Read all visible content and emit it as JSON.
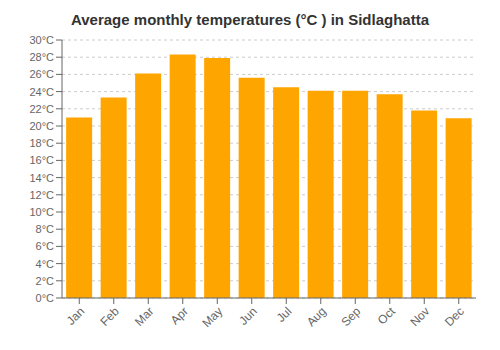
{
  "chart_data": {
    "type": "bar",
    "title": "Average monthly temperatures (°C ) in Sidlaghatta",
    "categories": [
      "Jan",
      "Feb",
      "Mar",
      "Apr",
      "May",
      "Jun",
      "Jul",
      "Aug",
      "Sep",
      "Oct",
      "Nov",
      "Dec"
    ],
    "values": [
      21.0,
      23.3,
      26.1,
      28.3,
      27.9,
      25.6,
      24.5,
      24.1,
      24.1,
      23.7,
      21.8,
      20.9
    ],
    "color": "#FFA500",
    "ylim": [
      0,
      30
    ],
    "yticks": [
      {
        "value": 0,
        "label": "0°C"
      },
      {
        "value": 2,
        "label": "2°C"
      },
      {
        "value": 4,
        "label": "4°C"
      },
      {
        "value": 6,
        "label": "6°C"
      },
      {
        "value": 8,
        "label": "8°C"
      },
      {
        "value": 10,
        "label": "10°C"
      },
      {
        "value": 12,
        "label": "12°C"
      },
      {
        "value": 14,
        "label": "14°C"
      },
      {
        "value": 16,
        "label": "16°C"
      },
      {
        "value": 18,
        "label": "18°C"
      },
      {
        "value": 20,
        "label": "20°C"
      },
      {
        "value": 22,
        "label": "22°C"
      },
      {
        "value": 24,
        "label": "24°C"
      },
      {
        "value": 26,
        "label": "26°C"
      },
      {
        "value": 28,
        "label": "28°C"
      },
      {
        "value": 30,
        "label": "30°C"
      }
    ],
    "grid": true
  }
}
